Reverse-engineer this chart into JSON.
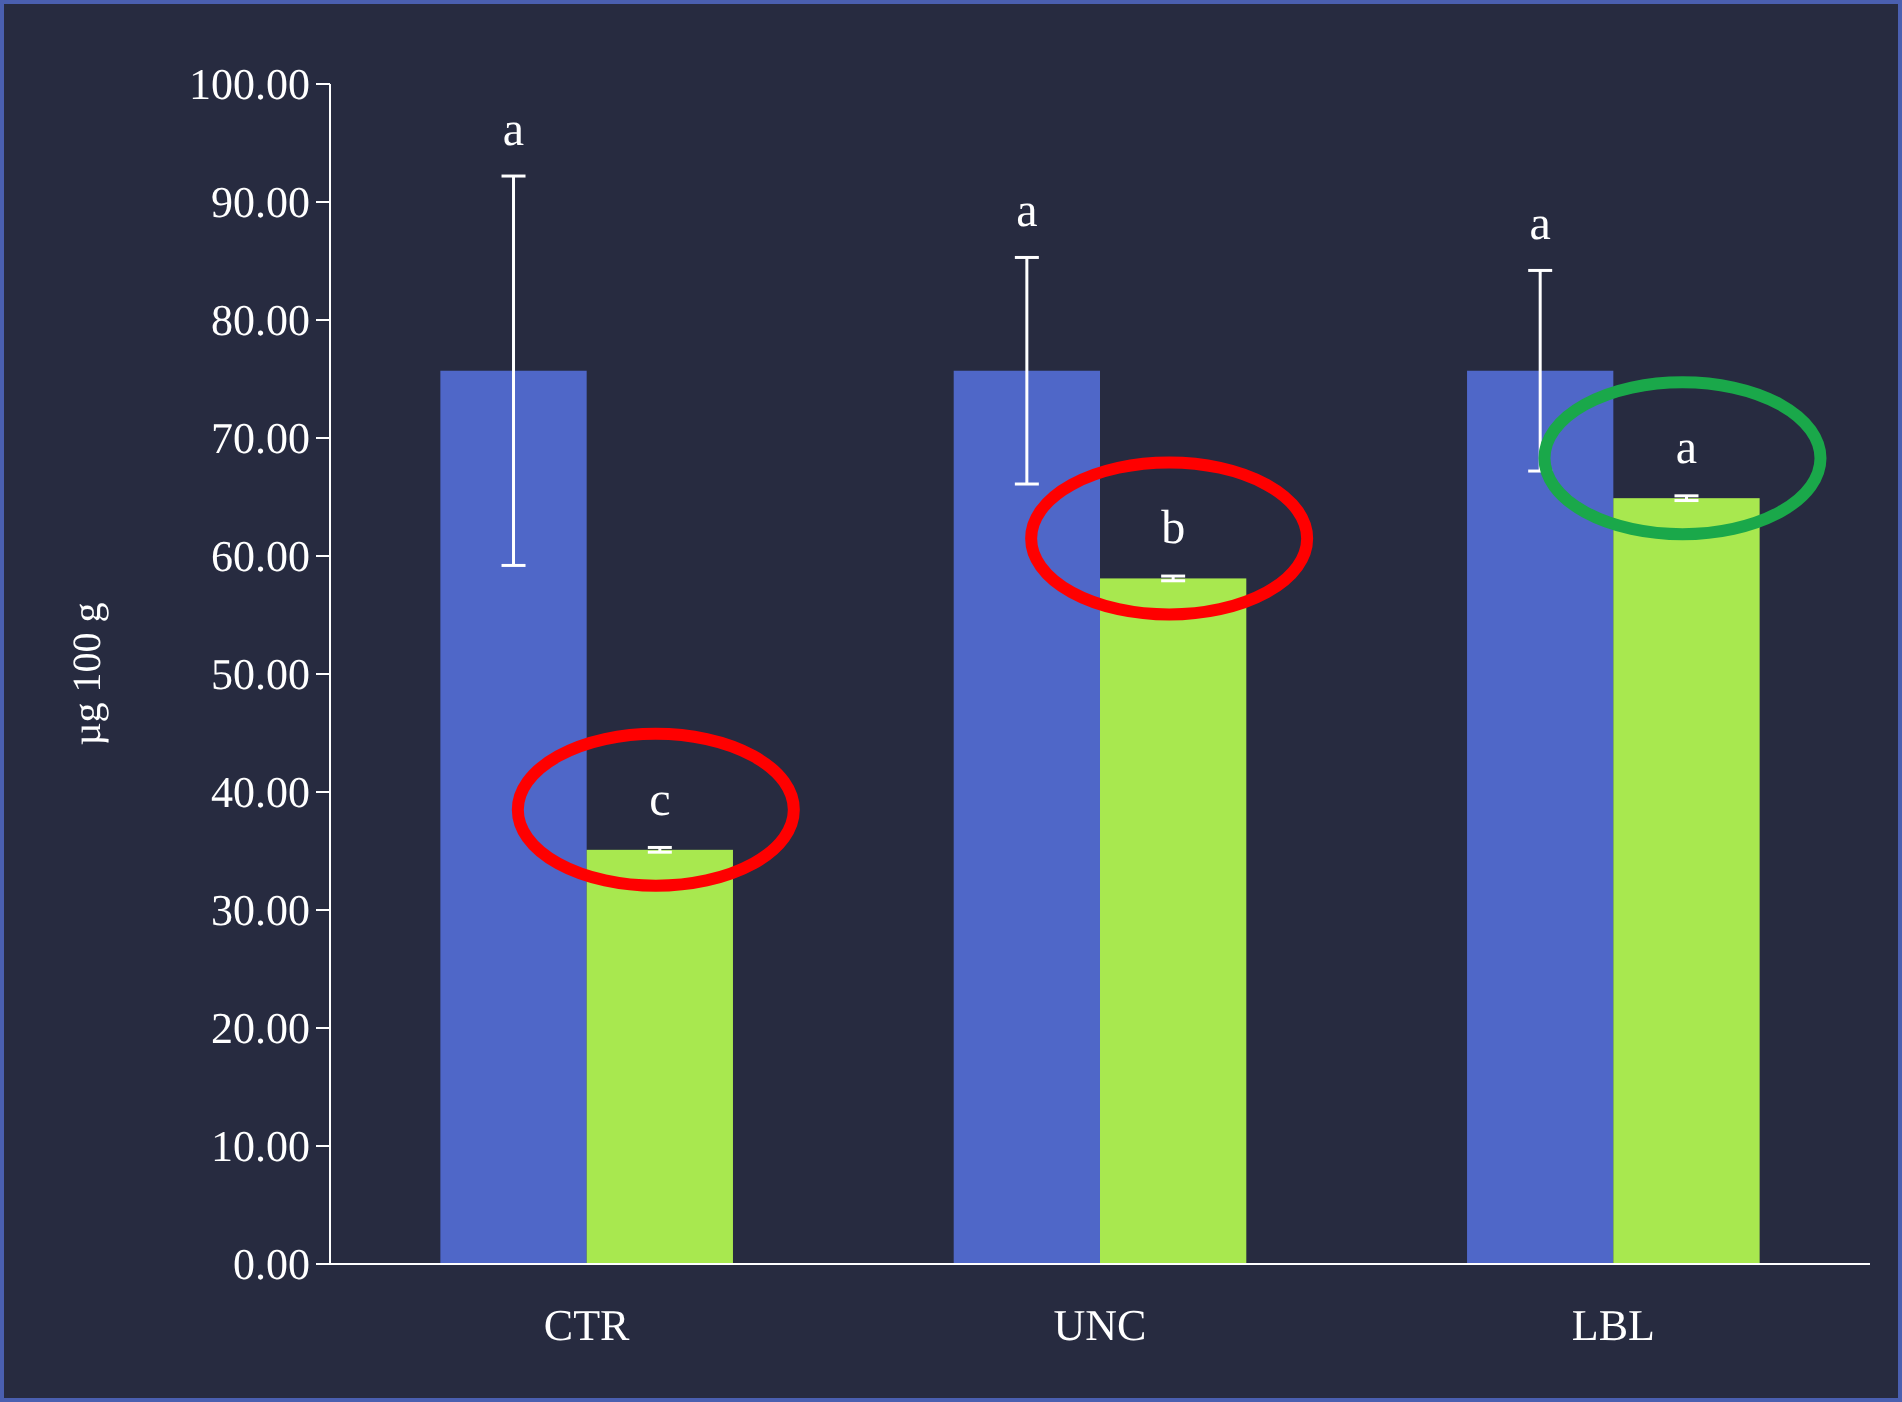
{
  "chart_data": {
    "type": "bar",
    "ylabel": "µg 100 g",
    "categories": [
      "CTR",
      "UNC",
      "LBL"
    ],
    "series": [
      {
        "color": "#4f67c8",
        "values": [
          75.7,
          75.7,
          75.7
        ],
        "errors": [
          16.5,
          9.6,
          8.5
        ]
      },
      {
        "color": "#a8e84f",
        "values": [
          35.1,
          58.1,
          64.9
        ],
        "errors": [
          0.2,
          0.2,
          0.2
        ]
      }
    ],
    "ylim": [
      0,
      100
    ],
    "yticks": [
      {
        "value": 0,
        "label": "0.00"
      },
      {
        "value": 10,
        "label": "10.00"
      },
      {
        "value": 20,
        "label": "20.00"
      },
      {
        "value": 30,
        "label": "30.00"
      },
      {
        "value": 40,
        "label": "40.00"
      },
      {
        "value": 50,
        "label": "50.00"
      },
      {
        "value": 60,
        "label": "60.00"
      },
      {
        "value": 70,
        "label": "70.00"
      },
      {
        "value": 80,
        "label": "80.00"
      },
      {
        "value": 90,
        "label": "90.00"
      },
      {
        "value": 100,
        "label": "100.00"
      }
    ],
    "grid": false,
    "annotations": [
      "a",
      {
        "text": "c",
        "x": "CTR",
        "y": 35.1
      },
      "a",
      {
        "text": "b",
        "x": "UNC",
        "y": 58.1
      },
      "a",
      {
        "text": "a",
        "x": "LBL",
        "y": 64.9
      }
    ]
  }
}
